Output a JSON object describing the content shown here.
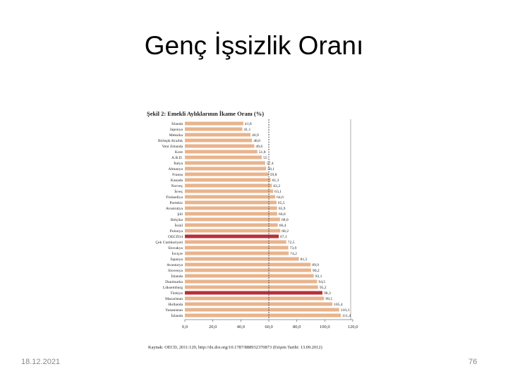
{
  "slide": {
    "title": "Genç İşsizlik Oranı",
    "date": "18.12.2021",
    "page_number": "76"
  },
  "chart_data": {
    "type": "bar",
    "orientation": "horizontal",
    "title": "Şekil 2: Emekli Aylıklarının İkame Oranı (%)",
    "source": "Kaynak: OECD, 2011:129, http://dx.doi.org/10.1787/888932370873 (Erişim Tarihi: 13.09.2012)",
    "xlim": [
      0,
      120
    ],
    "xticks": [
      "0,0",
      "20,0",
      "40,0",
      "60,0",
      "80,0",
      "100,0",
      "120,0"
    ],
    "reference_line": 60,
    "grid": false,
    "bar_color": "#e8b48c",
    "highlight_color": "#b8303a",
    "categories": [
      "İrlanda",
      "Japonya",
      "Meksika",
      "Birleşik Krallık",
      "Yeni Zelanda",
      "Kore",
      "A.B.D.",
      "İtalya",
      "Almanya",
      "Fransa",
      "Kanada",
      "Norveç",
      "İsveç",
      "Finlandiya",
      "Portekiz",
      "Avustralya",
      "Şili",
      "Belçika",
      "İsrail",
      "Polonya",
      "OECD34",
      "Çek Cumhuriyeti",
      "Slovakya",
      "İsviçre",
      "İspanya",
      "Avusturya",
      "Slovenya",
      "İzlanda",
      "Danimarka",
      "Lüksemburg",
      "Türkiye",
      "Macaristan",
      "Hollanda",
      "Yunanistan",
      "İzlanda"
    ],
    "value_labels": [
      "41,8",
      "41,1",
      "46,9",
      "48,0",
      "49,6",
      "51,8",
      "55",
      "57,4",
      "58,1",
      "59,8",
      "61,3",
      "62,2",
      "63,1",
      "64,6",
      "65,5",
      "65,9",
      "66,0",
      "68,0",
      "66,4",
      "68,2",
      "67,1",
      "72,5",
      "73,9",
      "74,2",
      "81,5",
      "89,9",
      "90,2",
      "92,1",
      "94,5",
      "95,2",
      "98,3",
      "99,5",
      "105,4",
      "110,3",
      "111,4"
    ],
    "values": [
      41.8,
      41.1,
      46.9,
      48.0,
      49.6,
      51.8,
      55,
      57.4,
      58.1,
      59.8,
      61.3,
      62.2,
      63.1,
      64.6,
      65.5,
      65.9,
      66.0,
      68.0,
      66.4,
      68.2,
      67.1,
      72.5,
      73.9,
      74.2,
      81.5,
      89.9,
      90.2,
      92.1,
      94.5,
      95.2,
      98.3,
      99.5,
      105.4,
      110.3,
      111.4
    ],
    "highlight": [
      "OECD34",
      "Türkiye"
    ]
  }
}
